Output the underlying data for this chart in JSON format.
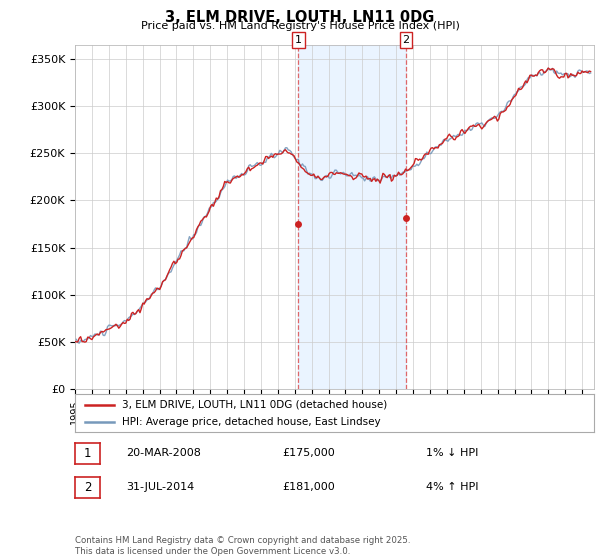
{
  "title": "3, ELM DRIVE, LOUTH, LN11 0DG",
  "subtitle": "Price paid vs. HM Land Registry's House Price Index (HPI)",
  "ylabel_ticks": [
    "£0",
    "£50K",
    "£100K",
    "£150K",
    "£200K",
    "£250K",
    "£300K",
    "£350K"
  ],
  "ytick_values": [
    0,
    50000,
    100000,
    150000,
    200000,
    250000,
    300000,
    350000
  ],
  "ylim": [
    0,
    365000
  ],
  "xlim_start": 1995.0,
  "xlim_end": 2025.7,
  "hpi_color": "#7799bb",
  "price_color": "#cc2222",
  "sale1_x": 2008.22,
  "sale1_y": 175000,
  "sale1_label": "1",
  "sale2_x": 2014.58,
  "sale2_y": 181000,
  "sale2_label": "2",
  "shade_x1": 2008.22,
  "shade_x2": 2014.58,
  "legend_line1": "3, ELM DRIVE, LOUTH, LN11 0DG (detached house)",
  "legend_line2": "HPI: Average price, detached house, East Lindsey",
  "annotation1_label": "1",
  "annotation1_date": "20-MAR-2008",
  "annotation1_price": "£175,000",
  "annotation1_hpi": "1% ↓ HPI",
  "annotation2_label": "2",
  "annotation2_date": "31-JUL-2014",
  "annotation2_price": "£181,000",
  "annotation2_hpi": "4% ↑ HPI",
  "footer": "Contains HM Land Registry data © Crown copyright and database right 2025.\nThis data is licensed under the Open Government Licence v3.0.",
  "background_color": "#ffffff",
  "grid_color": "#cccccc"
}
